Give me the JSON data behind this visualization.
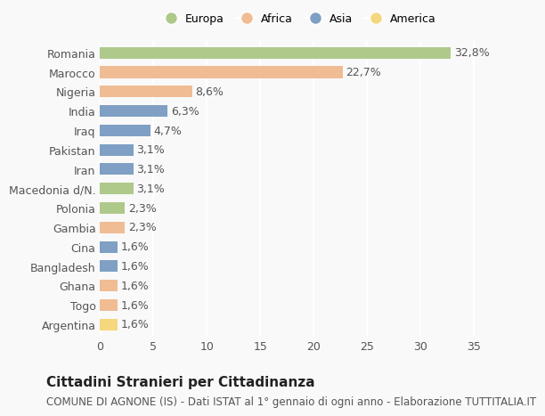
{
  "categories": [
    "Romania",
    "Marocco",
    "Nigeria",
    "India",
    "Iraq",
    "Pakistan",
    "Iran",
    "Macedonia d/N.",
    "Polonia",
    "Gambia",
    "Cina",
    "Bangladesh",
    "Ghana",
    "Togo",
    "Argentina"
  ],
  "values": [
    32.8,
    22.7,
    8.6,
    6.3,
    4.7,
    3.1,
    3.1,
    3.1,
    2.3,
    2.3,
    1.6,
    1.6,
    1.6,
    1.6,
    1.6
  ],
  "labels": [
    "32,8%",
    "22,7%",
    "8,6%",
    "6,3%",
    "4,7%",
    "3,1%",
    "3,1%",
    "3,1%",
    "2,3%",
    "2,3%",
    "1,6%",
    "1,6%",
    "1,6%",
    "1,6%",
    "1,6%"
  ],
  "colors": [
    "#aec98a",
    "#f0bc94",
    "#f0bc94",
    "#7f9fc4",
    "#7f9fc4",
    "#7f9fc4",
    "#7f9fc4",
    "#aec98a",
    "#aec98a",
    "#f0bc94",
    "#7f9fc4",
    "#7f9fc4",
    "#f0bc94",
    "#f0bc94",
    "#f5d77e"
  ],
  "legend": [
    {
      "label": "Europa",
      "color": "#aec98a"
    },
    {
      "label": "Africa",
      "color": "#f0bc94"
    },
    {
      "label": "Asia",
      "color": "#7f9fc4"
    },
    {
      "label": "America",
      "color": "#f5d77e"
    }
  ],
  "xlim": [
    0,
    37
  ],
  "xticks": [
    0,
    5,
    10,
    15,
    20,
    25,
    30,
    35
  ],
  "title": "Cittadini Stranieri per Cittadinanza",
  "subtitle": "COMUNE DI AGNONE (IS) - Dati ISTAT al 1° gennaio di ogni anno - Elaborazione TUTTITALIA.IT",
  "background_color": "#f9f9f9",
  "grid_color": "#ffffff",
  "bar_height": 0.6,
  "label_fontsize": 9,
  "tick_fontsize": 9,
  "title_fontsize": 11,
  "subtitle_fontsize": 8.5
}
